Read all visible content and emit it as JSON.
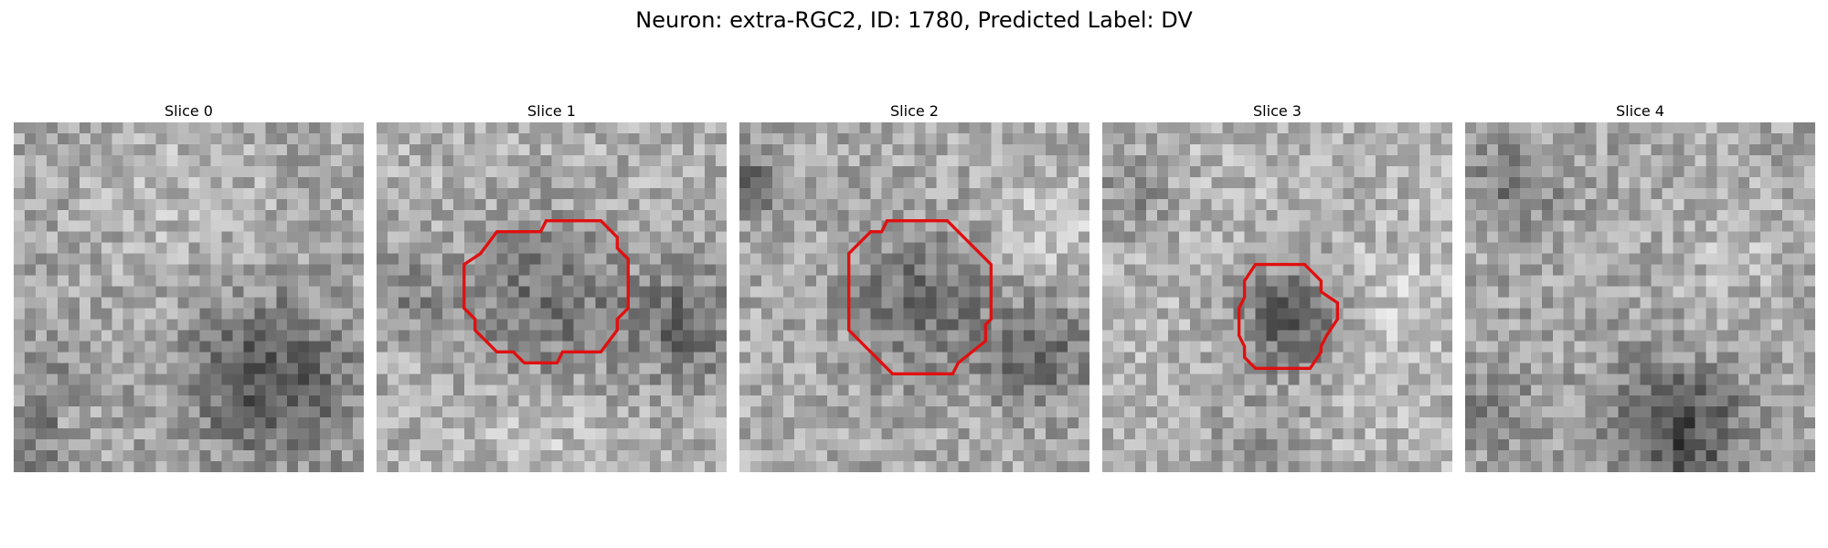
{
  "figure": {
    "title": "Neuron: extra-RGC2, ID: 1780, Predicted Label: DV"
  },
  "panels": [
    {
      "title": "Slice 0",
      "has_contour": false
    },
    {
      "title": "Slice 1",
      "has_contour": true
    },
    {
      "title": "Slice 2",
      "has_contour": true
    },
    {
      "title": "Slice 3",
      "has_contour": true
    },
    {
      "title": "Slice 4",
      "has_contour": false
    }
  ],
  "colors": {
    "contour": "#e01010",
    "background": "#ffffff"
  },
  "grid_size": 32
}
